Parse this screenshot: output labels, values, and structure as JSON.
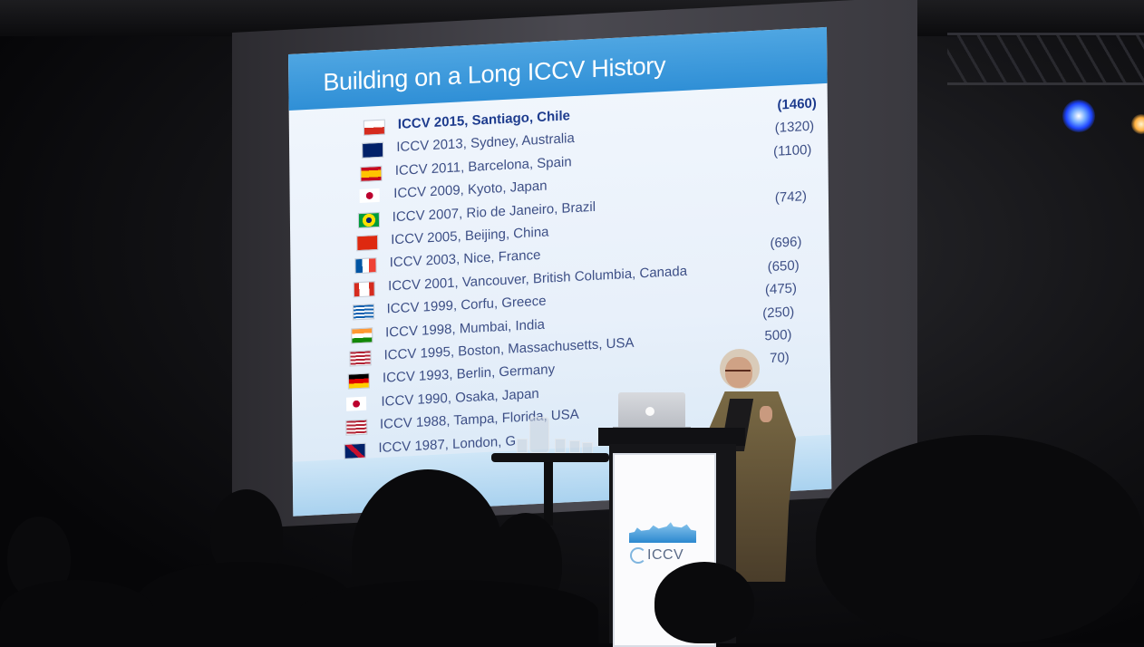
{
  "slide": {
    "title": "Building on a Long ICCV History",
    "entries": [
      {
        "text": "ICCV 2015, Santiago, Chile",
        "count": "(1460)",
        "flag": "chile"
      },
      {
        "text": "ICCV 2013, Sydney, Australia",
        "count": "(1320)",
        "flag": "australia"
      },
      {
        "text": "ICCV 2011, Barcelona, Spain",
        "count": "(1100)",
        "flag": "spain"
      },
      {
        "text": "ICCV 2009, Kyoto, Japan",
        "count": "",
        "flag": "japan"
      },
      {
        "text": "ICCV 2007, Rio de Janeiro, Brazil",
        "count": "(742)",
        "flag": "brazil"
      },
      {
        "text": "ICCV 2005, Beijing, China",
        "count": "",
        "flag": "china"
      },
      {
        "text": "ICCV 2003, Nice, France",
        "count": "(696)",
        "flag": "france"
      },
      {
        "text": "ICCV 2001, Vancouver, British Columbia, Canada",
        "count": "(650)",
        "flag": "canada"
      },
      {
        "text": "ICCV 1999, Corfu, Greece",
        "count": "(475)",
        "flag": "greece"
      },
      {
        "text": "ICCV 1998, Mumbai, India",
        "count": "(250)",
        "flag": "india"
      },
      {
        "text": "ICCV 1995, Boston, Massachusetts, USA",
        "count": "500)",
        "flag": "usa"
      },
      {
        "text": "ICCV 1993, Berlin, Germany",
        "count": "70)",
        "flag": "germany"
      },
      {
        "text": "ICCV 1990, Osaka, Japan",
        "count": "",
        "flag": "japan"
      },
      {
        "text": "ICCV 1988, Tampa, Florida, USA",
        "count": "",
        "flag": "usa"
      },
      {
        "text": "ICCV 1987, London, G",
        "count": "",
        "flag": "uk"
      }
    ]
  },
  "podium": {
    "logo_text": "ICCV"
  },
  "colors": {
    "slide_header": "#3d9ddf",
    "slide_text": "#3d4f86",
    "stage_light": "#1d44ff"
  }
}
